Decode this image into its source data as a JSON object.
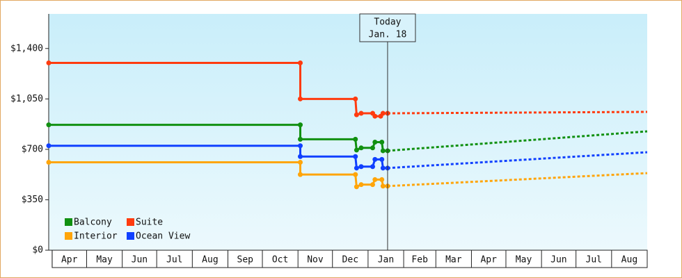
{
  "chart_data": {
    "type": "step-line",
    "xlim": [
      -3,
      518
    ],
    "ylim": [
      0,
      1640
    ],
    "grid": false,
    "legend": "bottom-left",
    "yticks": [
      {
        "value": 0,
        "label": "$0"
      },
      {
        "value": 350,
        "label": "$350"
      },
      {
        "value": 700,
        "label": "$700"
      },
      {
        "value": 1050,
        "label": "$1,050"
      },
      {
        "value": 1400,
        "label": "$1,400"
      }
    ],
    "xticks": [
      {
        "value": 0,
        "label": "Apr"
      },
      {
        "value": 30,
        "label": "May"
      },
      {
        "value": 61,
        "label": "Jun"
      },
      {
        "value": 91,
        "label": "Jul"
      },
      {
        "value": 122,
        "label": "Aug"
      },
      {
        "value": 153,
        "label": "Sep"
      },
      {
        "value": 183,
        "label": "Oct"
      },
      {
        "value": 214,
        "label": "Nov"
      },
      {
        "value": 244,
        "label": "Dec"
      },
      {
        "value": 275,
        "label": "Jan"
      },
      {
        "value": 306,
        "label": "Feb"
      },
      {
        "value": 334,
        "label": "Mar"
      },
      {
        "value": 365,
        "label": "Apr"
      },
      {
        "value": 395,
        "label": "May"
      },
      {
        "value": 426,
        "label": "Jun"
      },
      {
        "value": 456,
        "label": "Jul"
      },
      {
        "value": 487,
        "label": "Aug"
      }
    ],
    "today": {
      "x": 292,
      "label": [
        "Today",
        "Jan. 18"
      ]
    },
    "series": [
      {
        "name": "Balcony",
        "color": "#119011",
        "x": [
          -3,
          216,
          216,
          264,
          265,
          269,
          279,
          281,
          287,
          288,
          292
        ],
        "values": [
          870,
          870,
          770,
          770,
          695,
          710,
          710,
          750,
          750,
          690,
          690
        ],
        "forecast": {
          "x": [
            292,
            518
          ],
          "values": [
            690,
            825
          ]
        }
      },
      {
        "name": "Suite",
        "color": "#ff3b0f",
        "x": [
          -3,
          216,
          216,
          264,
          265,
          269,
          279,
          281,
          286,
          288,
          292
        ],
        "values": [
          1300,
          1300,
          1050,
          1050,
          940,
          950,
          950,
          930,
          930,
          950,
          950
        ],
        "forecast": {
          "x": [
            292,
            518
          ],
          "values": [
            950,
            960
          ]
        }
      },
      {
        "name": "Interior",
        "color": "#ffa50a",
        "x": [
          -3,
          216,
          216,
          264,
          265,
          269,
          279,
          281,
          287,
          288,
          292
        ],
        "values": [
          610,
          610,
          525,
          525,
          440,
          455,
          455,
          490,
          490,
          445,
          445
        ],
        "forecast": {
          "x": [
            292,
            518
          ],
          "values": [
            445,
            535
          ]
        }
      },
      {
        "name": "Ocean View",
        "color": "#1040ff",
        "x": [
          -3,
          216,
          216,
          264,
          265,
          269,
          279,
          281,
          287,
          288,
          292
        ],
        "values": [
          725,
          725,
          650,
          650,
          570,
          580,
          580,
          630,
          630,
          570,
          570
        ],
        "forecast": {
          "x": [
            292,
            518
          ],
          "values": [
            570,
            680
          ]
        }
      }
    ]
  }
}
